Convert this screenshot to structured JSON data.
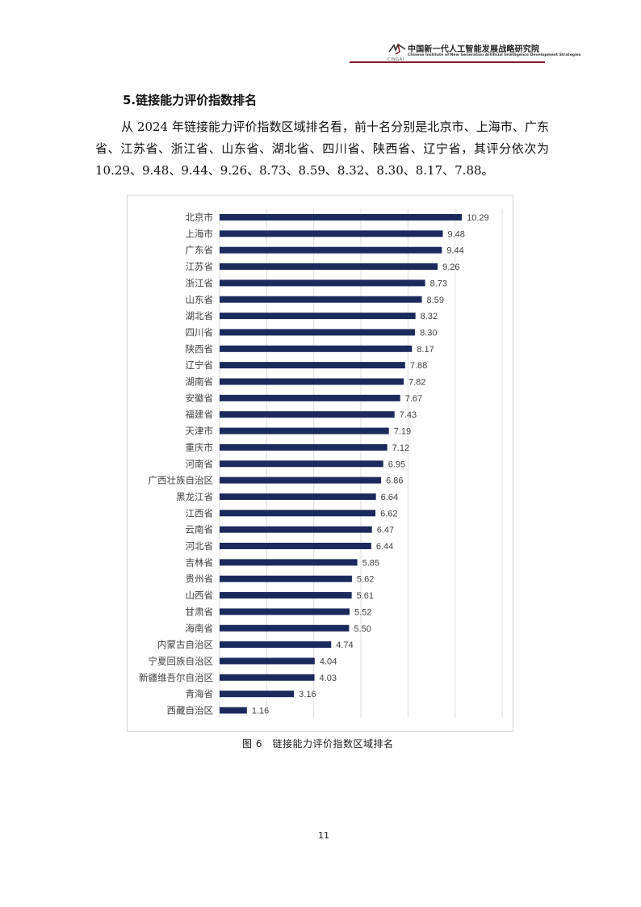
{
  "header": {
    "logo_text": "CINGAI",
    "org_name_cn": "中国新一代人工智能发展战略研究院",
    "org_name_en": "Chinese Institute of New Generation Artificial Intelligence Development Strategies",
    "rule_color": "#8a1a2c"
  },
  "section": {
    "title": "5.链接能力评价指数排名",
    "paragraph": "从 2024 年链接能力评价指数区域排名看，前十名分别是北京市、上海市、广东省、江苏省、浙江省、山东省、湖北省、四川省、陕西省、辽宁省，其评分依次为 10.29、9.48、9.44、9.26、8.73、8.59、8.32、8.30、8.17、7.88。"
  },
  "figure": {
    "caption": "图 6　链接能力评价指数区域排名"
  },
  "chart_data": {
    "type": "bar",
    "orientation": "horizontal",
    "bar_color": "#1b2a5c",
    "grid": true,
    "xlim": [
      0,
      12
    ],
    "categories": [
      "北京市",
      "上海市",
      "广东省",
      "江苏省",
      "浙江省",
      "山东省",
      "湖北省",
      "四川省",
      "陕西省",
      "辽宁省",
      "湖南省",
      "安徽省",
      "福建省",
      "天津市",
      "重庆市",
      "河南省",
      "广西壮族自治区",
      "黑龙江省",
      "江西省",
      "云南省",
      "河北省",
      "吉林省",
      "贵州省",
      "山西省",
      "甘肃省",
      "海南省",
      "内蒙古自治区",
      "宁夏回族自治区",
      "新疆维吾尔自治区",
      "青海省",
      "西藏自治区"
    ],
    "values": [
      10.29,
      9.48,
      9.44,
      9.26,
      8.73,
      8.59,
      8.32,
      8.3,
      8.17,
      7.88,
      7.82,
      7.67,
      7.43,
      7.19,
      7.12,
      6.95,
      6.86,
      6.64,
      6.62,
      6.47,
      6.44,
      5.85,
      5.62,
      5.61,
      5.52,
      5.5,
      4.74,
      4.04,
      4.03,
      3.16,
      1.16
    ],
    "value_labels": [
      "10.29",
      "9.48",
      "9.44",
      "9.26",
      "8.73",
      "8.59",
      "8.32",
      "8.30",
      "8.17",
      "7.88",
      "7.82",
      "7.67",
      "7.43",
      "7.19",
      "7.12",
      "6.95",
      "6.86",
      "6.64",
      "6.62",
      "6.47",
      "6.44",
      "5.85",
      "5.62",
      "5.61",
      "5.52",
      "5.50",
      "4.74",
      "4.04",
      "4.03",
      "3.16",
      "1.16"
    ]
  },
  "footer": {
    "page_number": "11"
  }
}
